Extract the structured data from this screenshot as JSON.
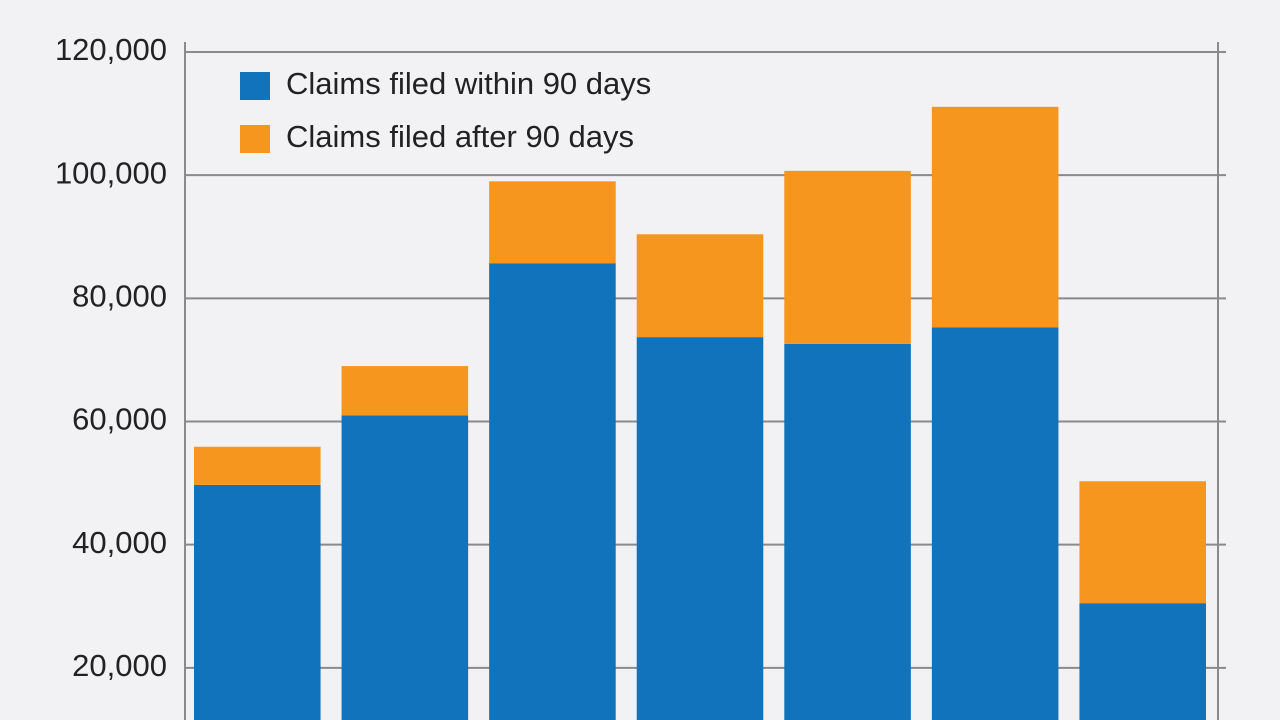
{
  "chart_data": {
    "type": "stacked_bar",
    "categories": [
      null,
      null,
      null,
      null,
      null,
      null,
      null
    ],
    "series": [
      {
        "name": "Claims filed within 90 days",
        "color": "#1173bc",
        "values": [
          49700,
          61000,
          85700,
          73700,
          72600,
          75300,
          30500
        ]
      },
      {
        "name": "Claims filed after 90 days",
        "color": "#f7961e",
        "values": [
          6200,
          8000,
          13300,
          16700,
          28100,
          35800,
          19800
        ]
      }
    ],
    "ylim": [
      0,
      120000
    ],
    "yticks": [
      {
        "value": 20000,
        "label": "20,000"
      },
      {
        "value": 40000,
        "label": "40,000"
      },
      {
        "value": 60000,
        "label": "60,000"
      },
      {
        "value": 80000,
        "label": "80,000"
      },
      {
        "value": 100000,
        "label": "100,000"
      },
      {
        "value": 120000,
        "label": "120,000"
      }
    ],
    "grid": true,
    "legend": "upper left"
  }
}
